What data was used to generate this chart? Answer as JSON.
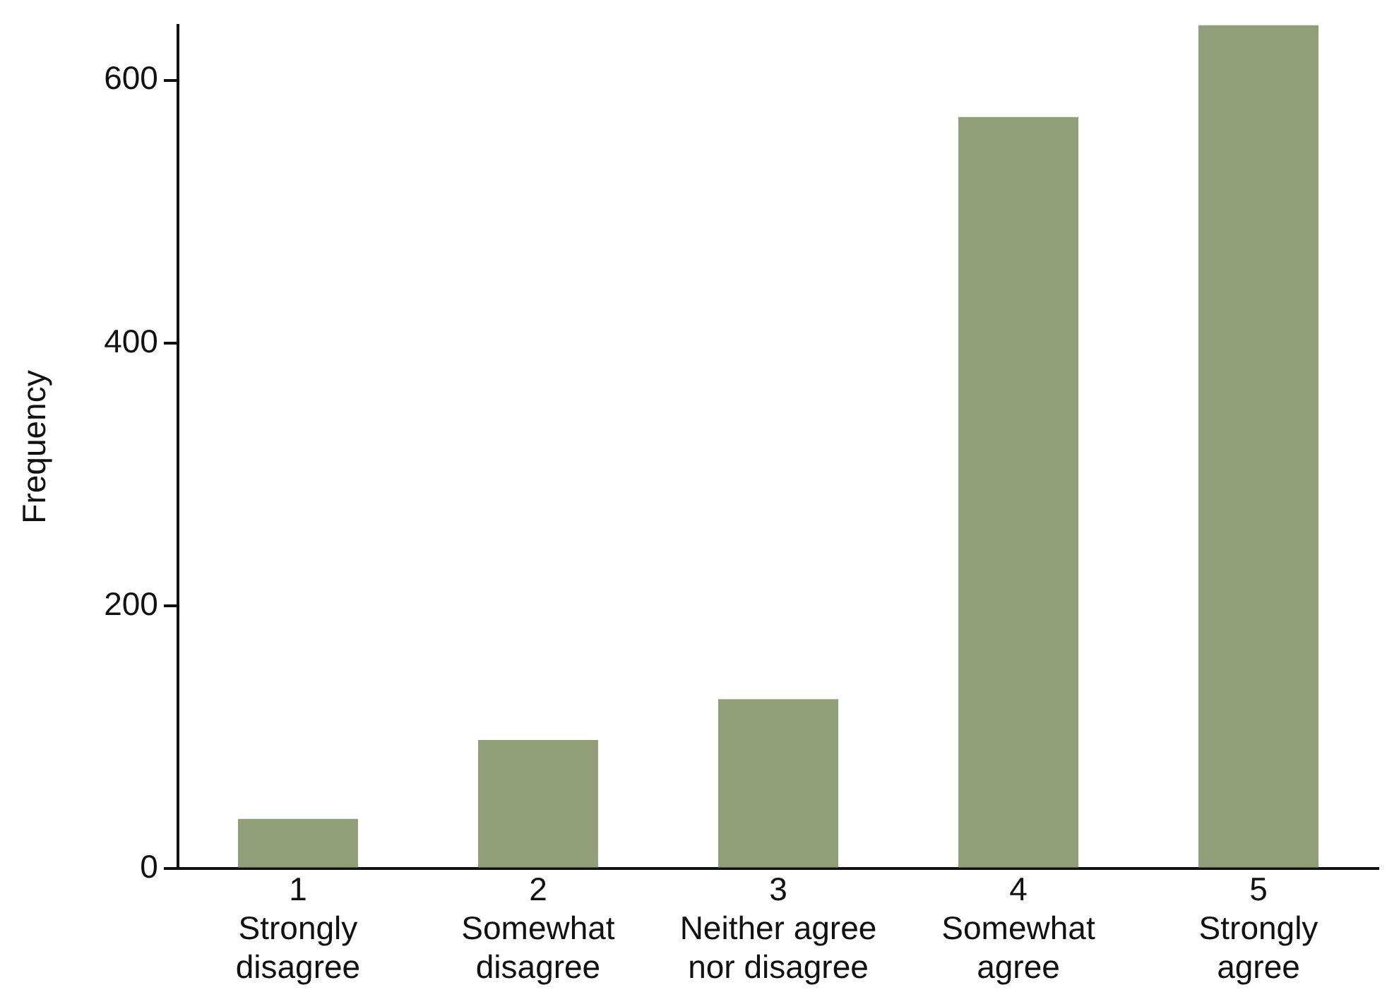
{
  "chart_data": {
    "type": "bar",
    "ylabel": "Frequency",
    "categories": [
      "1\nStrongly\ndisagree",
      "2\nSomewhat\ndisagree",
      "3\nNeither agree\nnor disagree",
      "4\nSomewhat\nagree",
      "5\nStrongly\nagree"
    ],
    "values": [
      38,
      98,
      129,
      572,
      642
    ],
    "color": "#919e78",
    "ylim": [
      0,
      642
    ],
    "yticks": [
      0,
      200,
      400,
      600
    ],
    "grid": false,
    "legend": false
  }
}
